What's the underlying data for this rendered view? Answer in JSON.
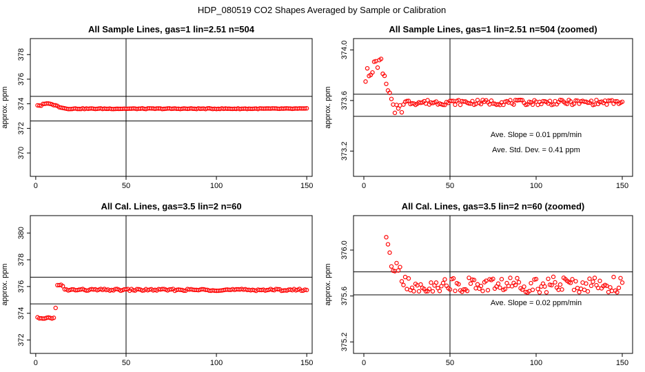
{
  "figure_title": "HDP_080519  CO2 Shapes Averaged by Sample or Calibration",
  "chart_data": [
    {
      "type": "scatter",
      "title": "All Sample Lines, gas=1 lin=2.51 n=504",
      "ylabel": "approx. ppm",
      "xlim": [
        -3,
        153
      ],
      "ylim": [
        368.1,
        379.3
      ],
      "xticks": [
        0,
        50,
        100,
        150
      ],
      "xtick_labels": [
        "0",
        "50",
        "100",
        "150"
      ],
      "yticks": [
        370,
        372,
        374,
        376,
        378
      ],
      "ytick_labels": [
        "370",
        "372",
        "374",
        "376",
        "378"
      ],
      "hlines": [
        374.6,
        372.6
      ],
      "vline": 50,
      "color": "#ff0000",
      "annotations": [],
      "series": [
        {
          "name": "sample",
          "gen": "s1"
        }
      ]
    },
    {
      "type": "scatter",
      "title": "All Sample Lines, gas=1 lin=2.51 n=504 (zoomed)",
      "ylabel": "approx. ppm",
      "xlim": [
        -6,
        156
      ],
      "ylim": [
        373.0,
        374.09
      ],
      "xticks": [
        0,
        50,
        100,
        150
      ],
      "xtick_labels": [
        "0",
        "50",
        "100",
        "150"
      ],
      "yticks": [
        373.2,
        373.6,
        374.0
      ],
      "ytick_labels": [
        "373.2",
        "373.6",
        "374.0"
      ],
      "hlines": [
        373.65,
        373.475
      ],
      "vline": 50,
      "color": "#ff0000",
      "annotations": [
        {
          "text": "Ave. Slope =  0.01  ppm/min",
          "x": 100,
          "y": 373.31
        },
        {
          "text": "Ave. Std. Dev. =  0.41  ppm",
          "x": 100,
          "y": 373.19
        }
      ],
      "series": [
        {
          "name": "sample zoomed",
          "gen": "s2"
        }
      ]
    },
    {
      "type": "scatter",
      "title": "All Cal. Lines, gas=3.5 lin=2 n=60",
      "ylabel": "approx. ppm",
      "xlim": [
        -3,
        153
      ],
      "ylim": [
        371.0,
        381.3
      ],
      "xticks": [
        0,
        50,
        100,
        150
      ],
      "xtick_labels": [
        "0",
        "50",
        "100",
        "150"
      ],
      "yticks": [
        372,
        374,
        376,
        378,
        380
      ],
      "ytick_labels": [
        "372",
        "374",
        "376",
        "378",
        "380"
      ],
      "hlines": [
        376.7,
        374.7
      ],
      "vline": 50,
      "color": "#ff0000",
      "annotations": [],
      "series": [
        {
          "name": "calibration",
          "gen": "c1"
        }
      ]
    },
    {
      "type": "scatter",
      "title": "All Cal. Lines, gas=3.5 lin=2 n=60 (zoomed)",
      "ylabel": "approx. ppm",
      "xlim": [
        -6,
        156
      ],
      "ylim": [
        375.1,
        376.3
      ],
      "xticks": [
        0,
        50,
        100,
        150
      ],
      "xtick_labels": [
        "0",
        "50",
        "100",
        "150"
      ],
      "yticks": [
        375.2,
        375.6,
        376.0
      ],
      "ytick_labels": [
        "375.2",
        "375.6",
        "376.0"
      ],
      "hlines": [
        375.81,
        375.61
      ],
      "vline": 50,
      "color": "#ff0000",
      "annotations": [
        {
          "text": "Ave. Slope =  0.02  ppm/min",
          "x": 100,
          "y": 375.52
        }
      ],
      "series": [
        {
          "name": "calibration zoomed",
          "gen": "c2"
        }
      ]
    }
  ]
}
